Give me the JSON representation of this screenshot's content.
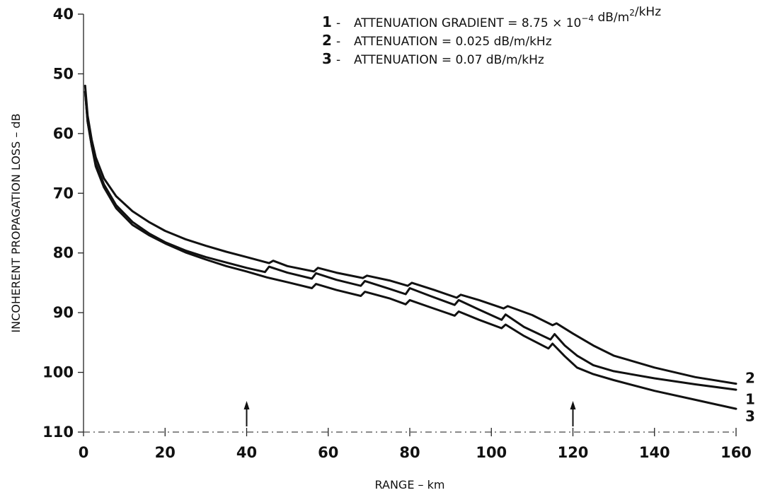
{
  "chart_data": {
    "type": "line",
    "xlabel": "RANGE – km",
    "ylabel": "INCOHERENT PROPAGATION LOSS – dB",
    "xlim": [
      0,
      160
    ],
    "ylim": [
      40,
      110
    ],
    "y_inverted": true,
    "x_ticks": [
      0,
      20,
      40,
      60,
      80,
      100,
      120,
      140,
      160
    ],
    "y_ticks": [
      40,
      50,
      60,
      70,
      80,
      90,
      100,
      110
    ],
    "grid": false,
    "legend": [
      {
        "num": "1",
        "dash": "-",
        "text": "ATTENUATION GRADIENT = 8.75 × 10",
        "sup": "−4",
        "text2": " dB/m",
        "sup2": "2",
        "text3": "/kHz"
      },
      {
        "num": "2",
        "dash": "-",
        "text": "ATTENUATION = 0.025 dB/m/kHz"
      },
      {
        "num": "3",
        "dash": "-",
        "text": "ATTENUATION = 0.07 dB/m/kHz"
      }
    ],
    "legend_position": "top-right",
    "markers": [
      {
        "type": "arrow",
        "x": 40
      },
      {
        "type": "arrow",
        "x": 120
      }
    ],
    "series": [
      {
        "name": "1",
        "x": [
          0.4,
          1,
          2,
          3,
          5,
          8,
          12,
          16,
          20,
          25,
          30,
          35,
          40,
          44.5,
          45.5,
          50,
          56,
          57,
          62,
          68,
          69,
          75,
          79,
          80,
          85,
          91,
          92,
          97,
          102.5,
          103.5,
          108,
          114.5,
          115.5,
          118,
          121,
          125,
          130,
          140,
          150,
          160
        ],
        "values": [
          53,
          58,
          62,
          65,
          68.5,
          72,
          74.8,
          76.7,
          78.2,
          79.6,
          80.7,
          81.6,
          82.5,
          83.2,
          82.3,
          83.3,
          84.3,
          83.4,
          84.5,
          85.5,
          84.7,
          86,
          86.9,
          85.9,
          87.2,
          88.7,
          87.9,
          89.5,
          91.2,
          90.3,
          92.4,
          94.5,
          93.6,
          95.5,
          97.2,
          98.8,
          99.8,
          101,
          102,
          102.9
        ]
      },
      {
        "name": "2",
        "x": [
          0.4,
          1,
          2,
          3,
          5,
          8,
          12,
          16,
          20,
          25,
          30,
          35,
          40,
          45.5,
          46.5,
          50,
          56.5,
          57.5,
          62,
          68.5,
          69.5,
          75,
          79.5,
          80.5,
          86,
          91.5,
          92.5,
          97,
          103,
          104,
          110,
          115,
          116,
          120,
          125,
          130,
          140,
          150,
          160
        ],
        "values": [
          52,
          57,
          61,
          64,
          67.5,
          70.5,
          73,
          74.8,
          76.3,
          77.7,
          78.8,
          79.8,
          80.7,
          81.7,
          81.3,
          82.2,
          83.1,
          82.5,
          83.3,
          84.2,
          83.8,
          84.6,
          85.5,
          85,
          86.2,
          87.5,
          87,
          87.9,
          89.3,
          88.9,
          90.4,
          92.1,
          91.8,
          93.5,
          95.5,
          97.2,
          99.2,
          100.8,
          101.9
        ]
      },
      {
        "name": "3",
        "x": [
          0.4,
          1,
          2,
          3,
          5,
          8,
          12,
          16,
          20,
          25,
          30,
          35,
          40,
          45,
          50,
          56,
          57,
          62,
          68,
          69,
          75,
          79,
          80,
          85,
          91,
          92,
          97,
          102.5,
          103.5,
          108,
          114,
          115,
          118,
          121,
          125,
          130,
          140,
          150,
          160
        ],
        "values": [
          53,
          58,
          62,
          65.5,
          69,
          72.5,
          75.3,
          77,
          78.4,
          79.9,
          81.1,
          82.2,
          83.1,
          84.1,
          84.9,
          85.9,
          85.2,
          86.2,
          87.2,
          86.5,
          87.6,
          88.6,
          87.9,
          89.1,
          90.5,
          89.8,
          91.2,
          92.6,
          92,
          93.9,
          96,
          95.2,
          97.3,
          99.2,
          100.3,
          101.3,
          103.1,
          104.6,
          106.1
        ]
      }
    ],
    "end_labels": [
      {
        "series": "2",
        "text": "2"
      },
      {
        "series": "1",
        "text": "1"
      },
      {
        "series": "3",
        "text": "3"
      }
    ]
  }
}
